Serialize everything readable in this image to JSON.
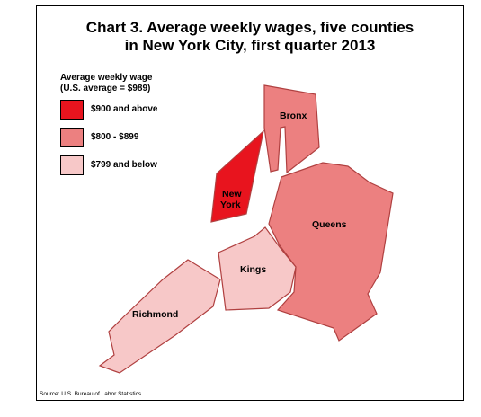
{
  "title_line1": "Chart 3. Average weekly wages, five counties",
  "title_line2": "in New York City, first quarter 2013",
  "legend": {
    "title_line1": "Average weekly wage",
    "title_line2": "(U.S. average = $989)",
    "items": [
      {
        "label": "$900 and above",
        "color": "#e8141e"
      },
      {
        "label": "$800 - $899",
        "color": "#ec8080"
      },
      {
        "label": "$799 and below",
        "color": "#f7c8c8"
      }
    ]
  },
  "counties": {
    "bronx": {
      "name": "Bronx",
      "range": "$800 - $899",
      "color": "#ec8080"
    },
    "new_york": {
      "name_line1": "New",
      "name_line2": "York",
      "range": "$900 and above",
      "color": "#e8141e"
    },
    "queens": {
      "name": "Queens",
      "range": "$800 - $899",
      "color": "#ec8080"
    },
    "kings": {
      "name": "Kings",
      "range": "$799 and below",
      "color": "#f7c8c8"
    },
    "richmond": {
      "name": "Richmond",
      "range": "$799 and below",
      "color": "#f7c8c8"
    }
  },
  "source": "Source: U.S. Bureau of Labor Statistics."
}
